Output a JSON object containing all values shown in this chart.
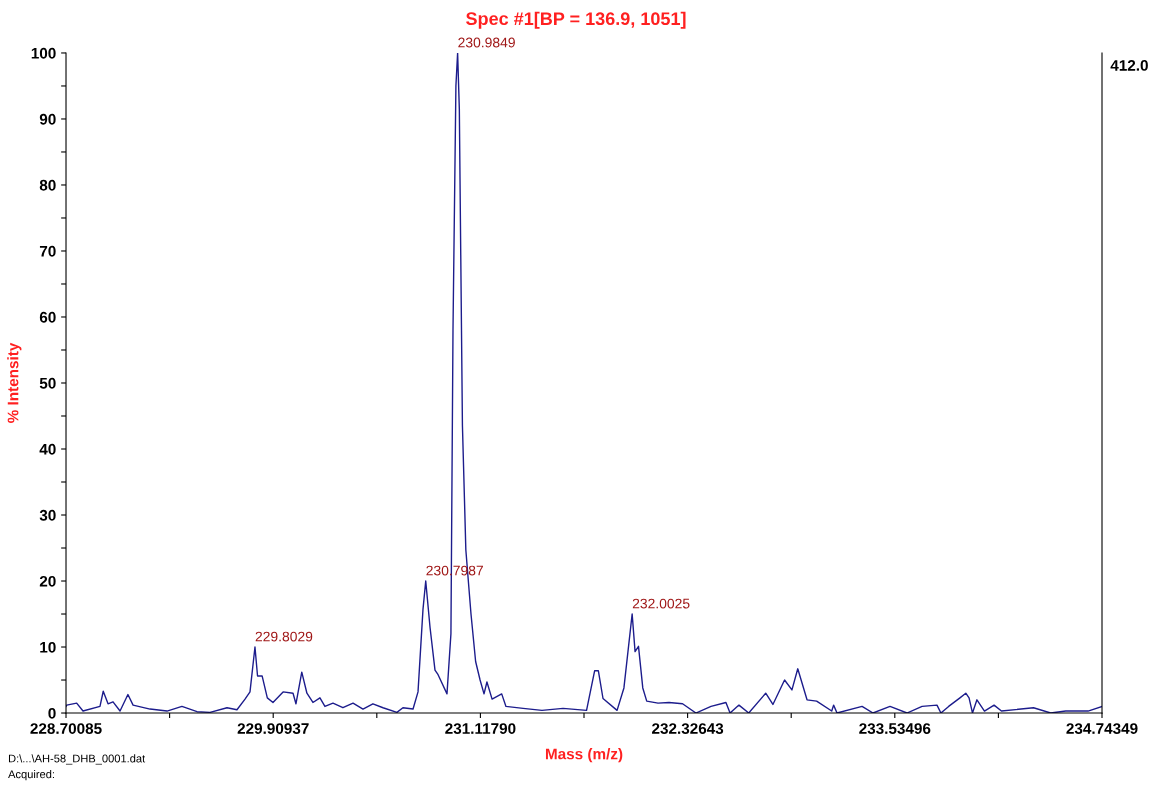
{
  "chart_data": {
    "type": "line",
    "title": "Spec #1[BP = 136.9, 1051]",
    "xlabel": "Mass (m/z)",
    "ylabel": "% Intensity",
    "series": [
      {
        "color": "#1c1c8c",
        "x": [
          228.701,
          228.705,
          228.763,
          228.8,
          228.899,
          228.918,
          228.946,
          228.975,
          229.016,
          229.062,
          229.092,
          229.191,
          229.29,
          229.377,
          229.465,
          229.541,
          229.64,
          229.698,
          229.745,
          229.774,
          229.803,
          229.818,
          229.845,
          229.875,
          229.908,
          229.967,
          230.025,
          230.042,
          230.076,
          230.106,
          230.141,
          230.182,
          230.211,
          230.258,
          230.316,
          230.375,
          230.433,
          230.491,
          230.55,
          230.631,
          230.666,
          230.725,
          230.754,
          230.783,
          230.799,
          230.824,
          230.853,
          230.871,
          230.923,
          230.946,
          230.958,
          230.975,
          230.985,
          230.995,
          231.013,
          231.033,
          231.063,
          231.09,
          231.116,
          231.139,
          231.156,
          231.186,
          231.242,
          231.267,
          231.367,
          231.477,
          231.6,
          231.737,
          231.784,
          231.806,
          231.833,
          231.915,
          231.955,
          232.003,
          232.02,
          232.04,
          232.065,
          232.088,
          232.154,
          232.218,
          232.297,
          232.375,
          232.463,
          232.55,
          232.574,
          232.626,
          232.683,
          232.782,
          232.824,
          232.892,
          232.935,
          232.969,
          233.023,
          233.079,
          233.167,
          233.178,
          233.198,
          233.344,
          233.408,
          233.507,
          233.606,
          233.694,
          233.781,
          233.804,
          233.849,
          233.915,
          233.949,
          233.968,
          233.988,
          234.014,
          234.058,
          234.114,
          234.157,
          234.344,
          234.444,
          234.532,
          234.662,
          234.743
        ],
        "values": [
          1.0,
          1.2,
          1.5,
          0.3,
          1.0,
          3.3,
          1.4,
          1.7,
          0.3,
          2.8,
          1.2,
          0.6,
          0.3,
          1.0,
          0.2,
          0.1,
          0.8,
          0.5,
          2.1,
          3.2,
          10,
          5.6,
          5.6,
          2.3,
          1.6,
          3.2,
          3.0,
          1.4,
          6.2,
          3.0,
          1.6,
          2.3,
          1.0,
          1.5,
          0.8,
          1.5,
          0.6,
          1.4,
          0.8,
          0.1,
          0.8,
          0.6,
          3.2,
          15.7,
          20,
          13,
          6.5,
          5.8,
          2.9,
          12,
          58,
          95,
          100,
          91.5,
          43.6,
          24.7,
          15,
          7.8,
          5.0,
          2.9,
          4.7,
          2.1,
          2.9,
          1.0,
          0.7,
          0.4,
          0.7,
          0.4,
          6.4,
          6.4,
          2.2,
          0.4,
          3.8,
          15,
          9.3,
          10.1,
          3.8,
          1.8,
          1.5,
          1.6,
          1.4,
          0,
          1.0,
          1.6,
          0,
          1.2,
          0,
          3.0,
          1.3,
          5.0,
          3.5,
          6.7,
          2.0,
          1.8,
          0.3,
          1.2,
          0,
          1.0,
          0,
          1.0,
          0,
          1.0,
          1.2,
          0,
          1.0,
          2.3,
          3.0,
          2.3,
          0,
          2.0,
          0.3,
          1.2,
          0.3,
          0.8,
          0,
          0.3,
          0.3,
          1.0
        ]
      }
    ],
    "xlim": [
      228.70085,
      234.74349
    ],
    "xticks": [
      228.70085,
      {
        "value": 229.30511,
        "label": null
      },
      229.90937,
      {
        "value": 230.513635,
        "label": null
      },
      {
        "value": 231.1179,
        "label": "231.11790"
      },
      {
        "value": 231.722165,
        "label": null
      },
      232.32643,
      {
        "value": 232.930695,
        "label": null
      },
      233.53496,
      {
        "value": 234.139225,
        "label": null
      },
      234.74349
    ],
    "ylim": [
      0,
      100
    ],
    "yticks": [
      0,
      {
        "value": 5,
        "label": null
      },
      10,
      {
        "value": 15,
        "label": null
      },
      20,
      {
        "value": 25,
        "label": null
      },
      30,
      {
        "value": 35,
        "label": null
      },
      40,
      {
        "value": 45,
        "label": null
      },
      50,
      {
        "value": 55,
        "label": null
      },
      60,
      {
        "value": 65,
        "label": null
      },
      70,
      {
        "value": 75,
        "label": null
      },
      80,
      {
        "value": 85,
        "label": null
      },
      90,
      {
        "value": 95,
        "label": null
      },
      100
    ],
    "annotations": [
      "412.0",
      {
        "text": "229.8029",
        "x": 229.803,
        "y": 10
      },
      {
        "text": "230.7987",
        "x": 230.799,
        "y": 20
      },
      {
        "text": "230.9849",
        "x": 230.985,
        "y": 100
      },
      {
        "text": "232.0025",
        "x": 232.003,
        "y": 15
      },
      "D:\\...\\AH-58_DHB_0001.dat",
      "Acquired:"
    ],
    "grid": false,
    "legend": false
  }
}
